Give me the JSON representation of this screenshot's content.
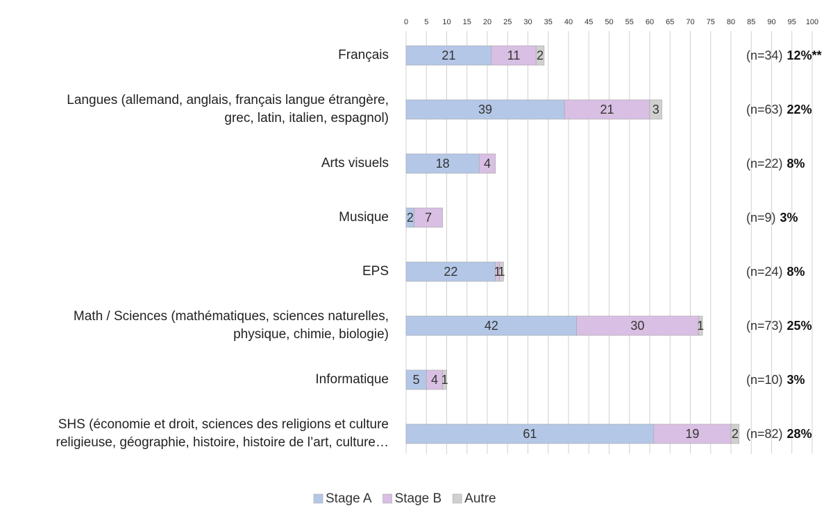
{
  "chart_data": {
    "type": "stacked-bar-horizontal",
    "categories": [
      "Français",
      "Langues (allemand, anglais, français langue étrangère,\ngrec, latin, italien, espagnol)",
      "Arts visuels",
      "Musique",
      "EPS",
      "Math / Sciences (mathématiques, sciences naturelles,\nphysique, chimie, biologie)",
      "Informatique",
      "SHS (économie et droit, sciences des religions et culture\nreligieuse, géographie, histoire, histoire de l’art, culture…"
    ],
    "series": [
      {
        "name": "Stage A",
        "color": "#b4c7e7",
        "values": [
          21,
          39,
          18,
          2,
          22,
          42,
          5,
          61
        ]
      },
      {
        "name": "Stage B",
        "color": "#d9bfe3",
        "values": [
          11,
          21,
          4,
          7,
          1,
          30,
          4,
          19
        ]
      },
      {
        "name": "Autre",
        "color": "#d0d0d0",
        "values": [
          2,
          3,
          null,
          null,
          1,
          1,
          1,
          2
        ]
      }
    ],
    "annotations": [
      {
        "n": "(n=34)",
        "pct": "12%**"
      },
      {
        "n": "(n=63)",
        "pct": "22%"
      },
      {
        "n": "(n=22)",
        "pct": "8%"
      },
      {
        "n": "(n=9)",
        "pct": "3%"
      },
      {
        "n": "(n=24)",
        "pct": "8%"
      },
      {
        "n": "(n=73)",
        "pct": "25%"
      },
      {
        "n": "(n=10)",
        "pct": "3%"
      },
      {
        "n": "(n=82)",
        "pct": "28%"
      }
    ],
    "xlim": [
      0,
      100
    ],
    "xticks": [
      0,
      5,
      10,
      15,
      20,
      25,
      30,
      35,
      40,
      45,
      50,
      55,
      60,
      65,
      70,
      75,
      80,
      85,
      90,
      95,
      100
    ],
    "grid": true,
    "legend": "bottom"
  }
}
